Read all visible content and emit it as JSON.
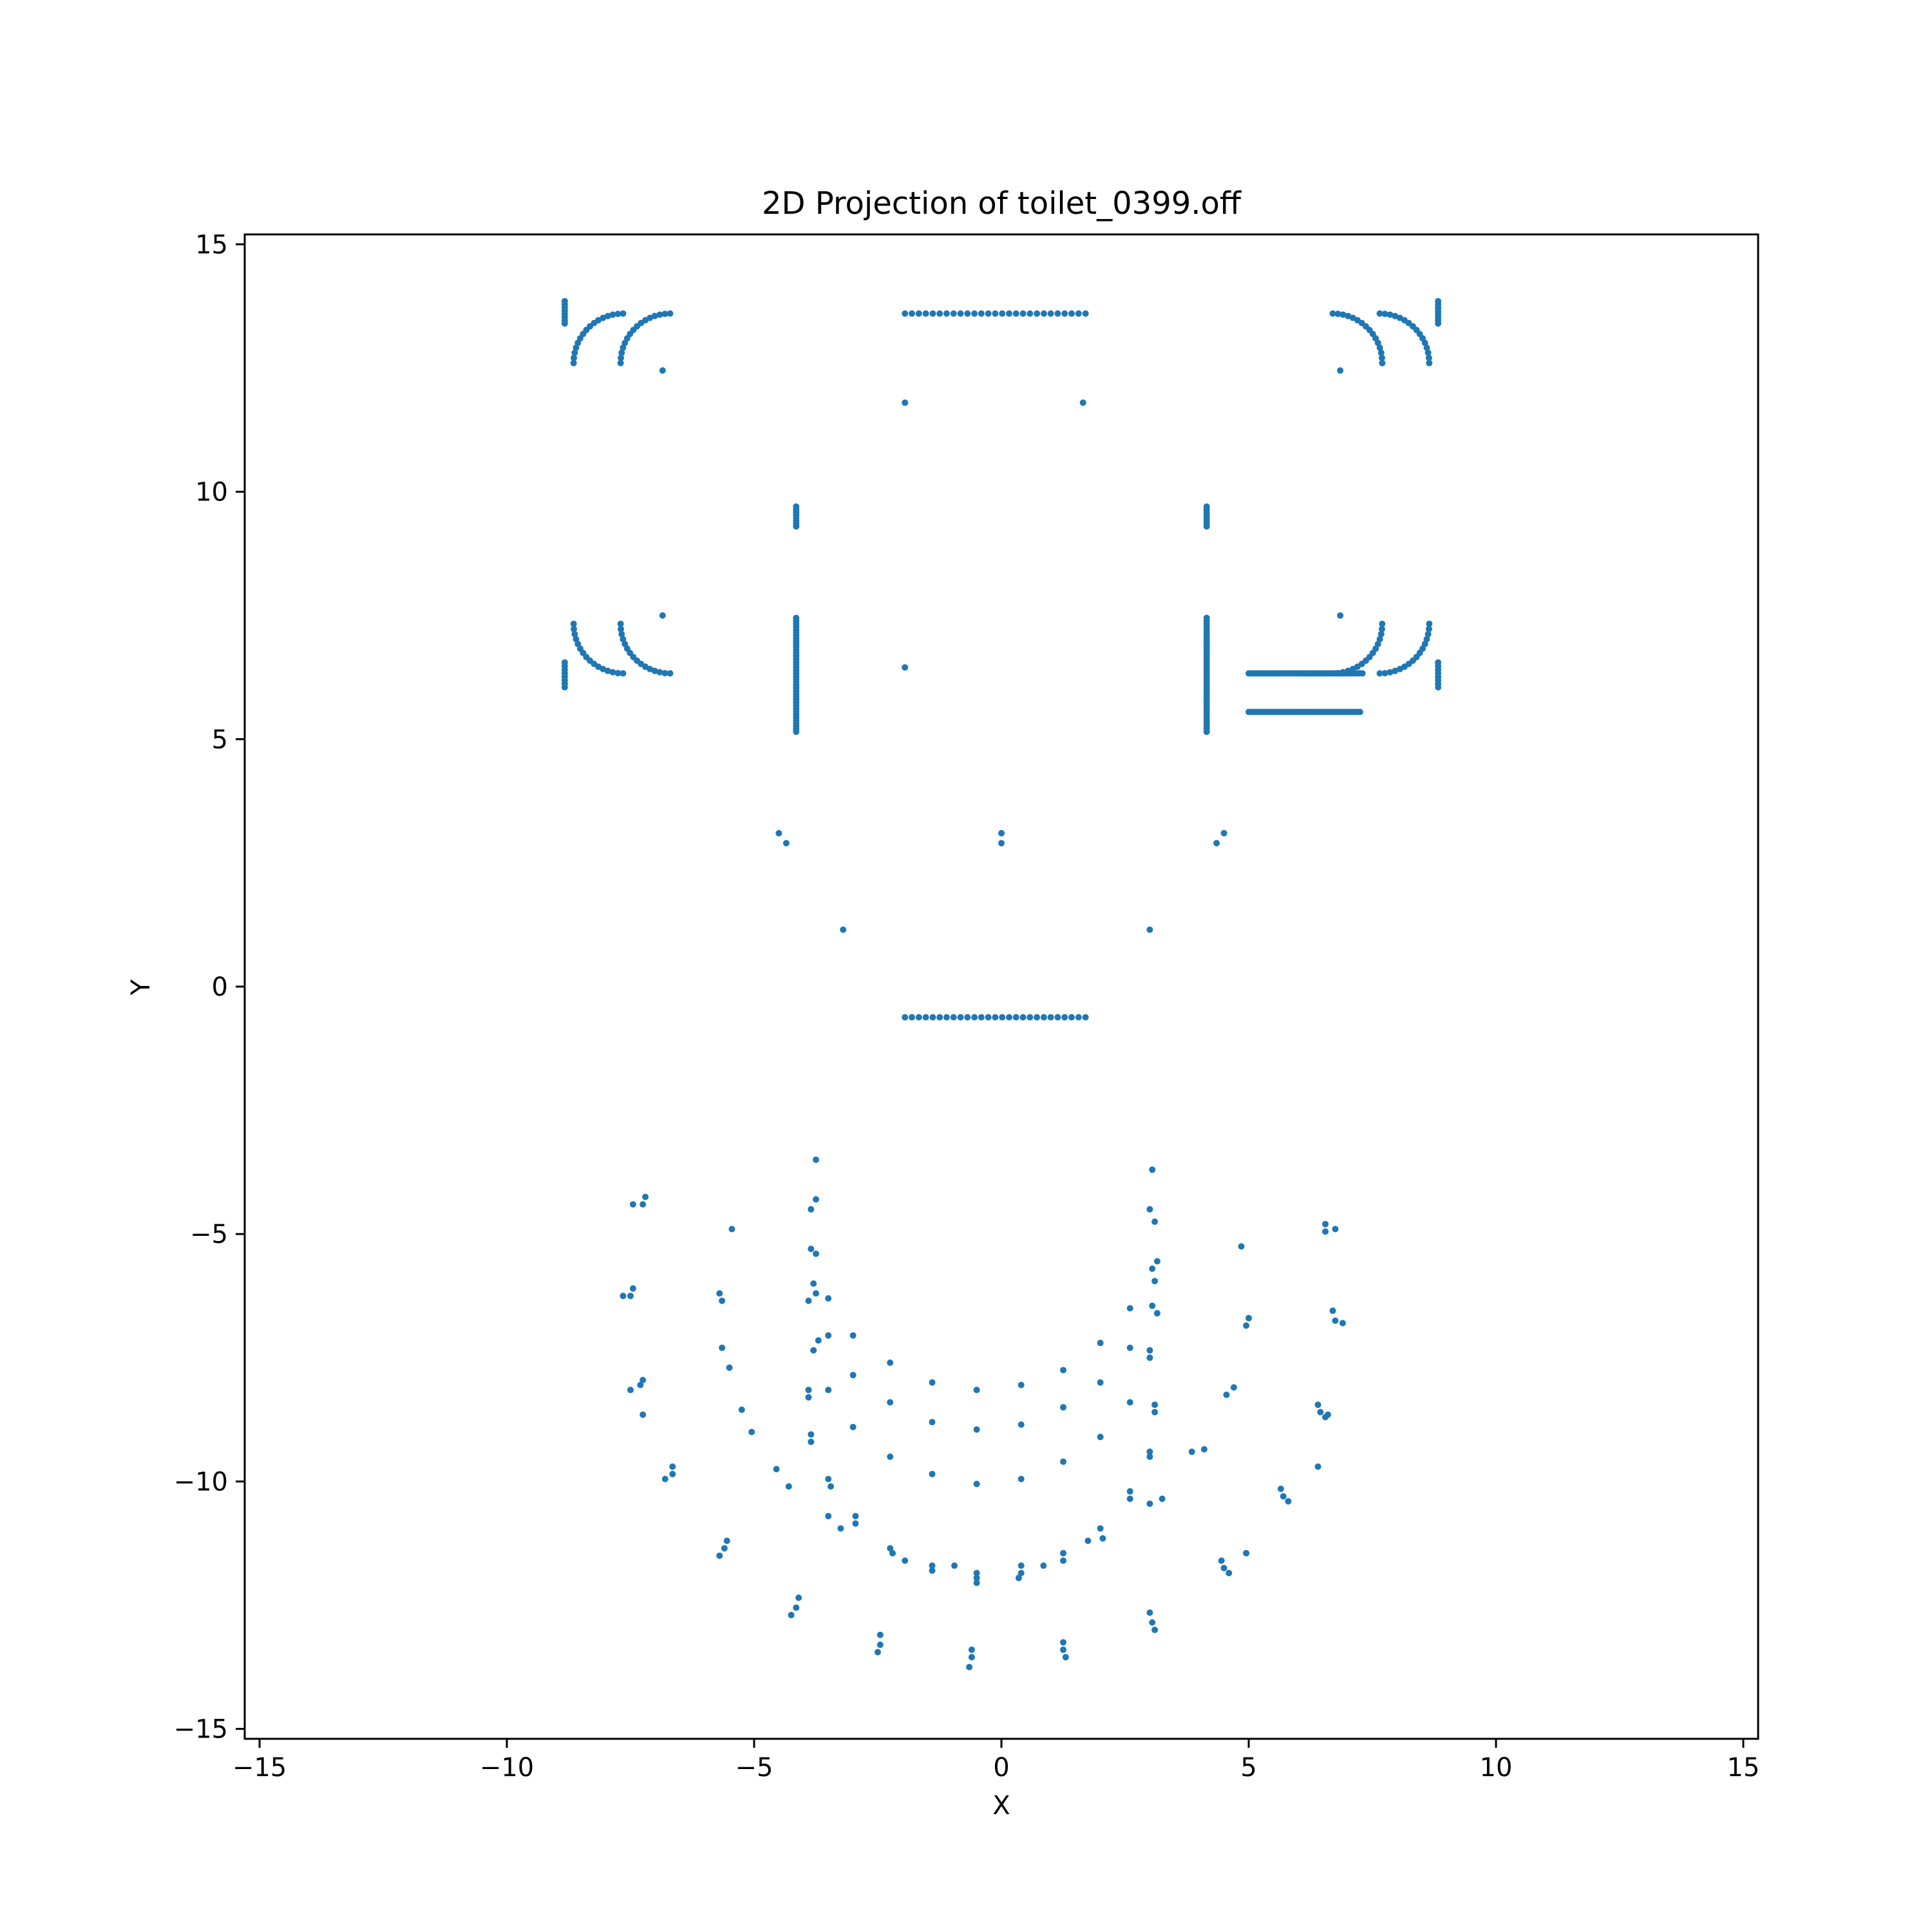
{
  "chart_data": {
    "type": "scatter",
    "title": "2D Projection of toilet_0399.off",
    "xlabel": "X",
    "ylabel": "Y",
    "xlim": [
      -15.3,
      15.3
    ],
    "ylim": [
      -15.2,
      15.2
    ],
    "xticks": [
      -15,
      -10,
      -5,
      0,
      5,
      10,
      15
    ],
    "yticks": [
      -15,
      -10,
      -5,
      0,
      5,
      10,
      15
    ],
    "xtick_labels": [
      "−15",
      "−10",
      "−5",
      "0",
      "5",
      "10",
      "15"
    ],
    "ytick_labels": [
      "−15",
      "−10",
      "−5",
      "0",
      "5",
      "10",
      "15"
    ],
    "grid": false,
    "color": "#1f77b4",
    "series": [
      {
        "segments": [
          {
            "from": [
              -1.95,
              13.6
            ],
            "to": [
              1.7,
              13.6
            ],
            "n": 27
          },
          {
            "from": [
              -1.95,
              -0.62
            ],
            "to": [
              1.7,
              -0.62
            ],
            "n": 27
          },
          {
            "from": [
              -4.15,
              5.15
            ],
            "to": [
              -4.15,
              7.45
            ],
            "n": 40
          },
          {
            "from": [
              4.15,
              5.15
            ],
            "to": [
              4.15,
              7.45
            ],
            "n": 40
          },
          {
            "from": [
              -4.15,
              9.3
            ],
            "to": [
              -4.15,
              9.7
            ],
            "n": 8
          },
          {
            "from": [
              4.15,
              9.3
            ],
            "to": [
              4.15,
              9.7
            ],
            "n": 8
          },
          {
            "from": [
              -8.83,
              13.4
            ],
            "to": [
              -8.83,
              13.85
            ],
            "n": 8
          },
          {
            "from": [
              8.83,
              13.4
            ],
            "to": [
              8.83,
              13.85
            ],
            "n": 8
          },
          {
            "from": [
              -8.83,
              6.05
            ],
            "to": [
              -8.83,
              6.55
            ],
            "n": 8
          },
          {
            "from": [
              8.83,
              6.05
            ],
            "to": [
              8.83,
              6.55
            ],
            "n": 8
          },
          {
            "from": [
              5.0,
              6.33
            ],
            "to": [
              7.3,
              6.33
            ],
            "n": 42
          },
          {
            "from": [
              5.0,
              5.55
            ],
            "to": [
              7.25,
              5.55
            ],
            "n": 40
          }
        ],
        "arcs": [
          {
            "center": [
              -7.65,
              12.6
            ],
            "radius": 1.0,
            "from_deg": 90,
            "to_deg": 180,
            "n": 16
          },
          {
            "center": [
              -6.7,
              12.6
            ],
            "radius": 1.0,
            "from_deg": 90,
            "to_deg": 180,
            "n": 16
          },
          {
            "center": [
              7.65,
              12.6
            ],
            "radius": 1.0,
            "from_deg": 0,
            "to_deg": 90,
            "n": 16
          },
          {
            "center": [
              6.7,
              12.6
            ],
            "radius": 1.0,
            "from_deg": 0,
            "to_deg": 90,
            "n": 16
          },
          {
            "center": [
              -7.65,
              7.33
            ],
            "radius": 1.0,
            "from_deg": 180,
            "to_deg": 270,
            "n": 16
          },
          {
            "center": [
              -6.7,
              7.33
            ],
            "radius": 1.0,
            "from_deg": 180,
            "to_deg": 270,
            "n": 16
          },
          {
            "center": [
              7.65,
              7.33
            ],
            "radius": 1.0,
            "from_deg": 270,
            "to_deg": 360,
            "n": 16
          },
          {
            "center": [
              6.7,
              7.33
            ],
            "radius": 1.0,
            "from_deg": 270,
            "to_deg": 360,
            "n": 16
          }
        ],
        "points": [
          [
            -1.95,
            11.8
          ],
          [
            1.65,
            11.8
          ],
          [
            -6.85,
            12.45
          ],
          [
            6.85,
            12.45
          ],
          [
            -6.85,
            7.5
          ],
          [
            6.85,
            7.5
          ],
          [
            -1.95,
            6.45
          ],
          [
            -4.5,
            3.1
          ],
          [
            -4.35,
            2.9
          ],
          [
            0.0,
            3.1
          ],
          [
            0.0,
            2.9
          ],
          [
            4.35,
            2.9
          ],
          [
            4.5,
            3.1
          ],
          [
            -3.2,
            1.15
          ],
          [
            3.0,
            1.15
          ],
          [
            -3.75,
            -3.5
          ],
          [
            -3.75,
            -4.3
          ],
          [
            -3.85,
            -4.5
          ],
          [
            -3.85,
            -5.3
          ],
          [
            -3.75,
            -5.4
          ],
          [
            -3.8,
            -6.0
          ],
          [
            -3.75,
            -6.2
          ],
          [
            -3.9,
            -6.35
          ],
          [
            -3.5,
            -6.3
          ],
          [
            -3.8,
            -7.35
          ],
          [
            -3.7,
            -7.15
          ],
          [
            -3.5,
            -7.05
          ],
          [
            -3.9,
            -8.15
          ],
          [
            -3.9,
            -8.3
          ],
          [
            -3.5,
            -8.15
          ],
          [
            -3.85,
            -9.05
          ],
          [
            -3.85,
            -9.2
          ],
          [
            -3.5,
            -9.95
          ],
          [
            -3.45,
            -10.1
          ],
          [
            -3.5,
            -10.7
          ],
          [
            -3.25,
            -10.95
          ],
          [
            -2.95,
            -10.85
          ],
          [
            -2.95,
            -10.7
          ],
          [
            -3.0,
            -8.9
          ],
          [
            -3.0,
            -7.85
          ],
          [
            -3.0,
            -7.05
          ],
          [
            -2.25,
            -7.6
          ],
          [
            -2.25,
            -8.4
          ],
          [
            -2.25,
            -9.5
          ],
          [
            -2.25,
            -11.35
          ],
          [
            -2.2,
            -11.45
          ],
          [
            -1.95,
            -11.6
          ],
          [
            -1.4,
            -11.7
          ],
          [
            -1.4,
            -11.8
          ],
          [
            -0.95,
            -11.7
          ],
          [
            -0.5,
            -11.85
          ],
          [
            -0.5,
            -11.95
          ],
          [
            -0.5,
            -12.05
          ],
          [
            0.4,
            -11.7
          ],
          [
            0.4,
            -11.85
          ],
          [
            0.35,
            -11.95
          ],
          [
            0.85,
            -11.7
          ],
          [
            1.75,
            -11.2
          ],
          [
            2.0,
            -10.95
          ],
          [
            2.05,
            -11.15
          ],
          [
            1.25,
            -11.45
          ],
          [
            1.25,
            -11.6
          ],
          [
            1.25,
            -9.6
          ],
          [
            1.25,
            -8.5
          ],
          [
            1.25,
            -7.75
          ],
          [
            0.4,
            -8.05
          ],
          [
            0.4,
            -8.85
          ],
          [
            0.4,
            -9.95
          ],
          [
            -0.5,
            -8.15
          ],
          [
            -0.5,
            -8.95
          ],
          [
            -0.5,
            -10.05
          ],
          [
            -1.4,
            -8.0
          ],
          [
            -1.4,
            -8.8
          ],
          [
            -1.4,
            -9.85
          ],
          [
            2.0,
            -7.2
          ],
          [
            2.0,
            -8.0
          ],
          [
            2.0,
            -9.1
          ],
          [
            2.6,
            -6.5
          ],
          [
            2.6,
            -7.3
          ],
          [
            2.6,
            -8.4
          ],
          [
            2.6,
            -10.2
          ],
          [
            2.6,
            -10.35
          ],
          [
            3.0,
            -10.45
          ],
          [
            3.0,
            -9.4
          ],
          [
            3.0,
            -9.5
          ],
          [
            3.1,
            -8.45
          ],
          [
            3.1,
            -8.6
          ],
          [
            3.0,
            -7.5
          ],
          [
            3.0,
            -7.35
          ],
          [
            3.05,
            -6.45
          ],
          [
            3.15,
            -6.6
          ],
          [
            3.1,
            -5.95
          ],
          [
            3.05,
            -5.7
          ],
          [
            3.15,
            -5.55
          ],
          [
            3.1,
            -4.75
          ],
          [
            3.0,
            -4.5
          ],
          [
            3.05,
            -3.7
          ],
          [
            3.25,
            -10.35
          ],
          [
            3.85,
            -9.4
          ],
          [
            4.1,
            -9.35
          ],
          [
            4.45,
            -11.6
          ],
          [
            4.5,
            -11.75
          ],
          [
            4.6,
            -11.85
          ],
          [
            4.95,
            -11.45
          ],
          [
            4.55,
            -8.25
          ],
          [
            4.7,
            -8.1
          ],
          [
            4.85,
            -5.25
          ],
          [
            4.95,
            -6.85
          ],
          [
            5.0,
            -6.7
          ],
          [
            5.65,
            -10.15
          ],
          [
            5.7,
            -10.3
          ],
          [
            5.8,
            -10.4
          ],
          [
            6.4,
            -8.45
          ],
          [
            6.45,
            -8.6
          ],
          [
            6.55,
            -8.7
          ],
          [
            6.6,
            -8.65
          ],
          [
            6.4,
            -9.7
          ],
          [
            6.55,
            -4.8
          ],
          [
            6.55,
            -4.95
          ],
          [
            6.75,
            -4.9
          ],
          [
            6.7,
            -6.55
          ],
          [
            6.75,
            -6.75
          ],
          [
            6.9,
            -6.8
          ],
          [
            -7.45,
            -4.4
          ],
          [
            -7.2,
            -4.25
          ],
          [
            -7.25,
            -4.4
          ],
          [
            -7.65,
            -6.25
          ],
          [
            -7.45,
            -6.1
          ],
          [
            -7.5,
            -6.25
          ],
          [
            -7.5,
            -8.15
          ],
          [
            -7.3,
            -8.05
          ],
          [
            -7.25,
            -7.95
          ],
          [
            -7.25,
            -8.65
          ],
          [
            -6.8,
            -9.95
          ],
          [
            -6.65,
            -9.7
          ],
          [
            -6.65,
            -9.85
          ],
          [
            -5.45,
            -4.9
          ],
          [
            -5.7,
            -6.2
          ],
          [
            -5.65,
            -6.35
          ],
          [
            -5.65,
            -7.3
          ],
          [
            -5.5,
            -7.7
          ],
          [
            -5.25,
            -8.55
          ],
          [
            -5.05,
            -9.0
          ],
          [
            -4.55,
            -9.75
          ],
          [
            -4.3,
            -10.1
          ],
          [
            -5.7,
            -11.5
          ],
          [
            -5.6,
            -11.35
          ],
          [
            -5.55,
            -11.2
          ],
          [
            -4.1,
            -12.35
          ],
          [
            -4.15,
            -12.55
          ],
          [
            -4.25,
            -12.7
          ],
          [
            -2.5,
            -13.45
          ],
          [
            -2.45,
            -13.3
          ],
          [
            -2.45,
            -13.1
          ],
          [
            -0.65,
            -13.75
          ],
          [
            -0.6,
            -13.55
          ],
          [
            -0.6,
            -13.4
          ],
          [
            1.25,
            -13.25
          ],
          [
            1.25,
            -13.4
          ],
          [
            1.3,
            -13.55
          ],
          [
            3.0,
            -12.65
          ],
          [
            3.05,
            -12.85
          ],
          [
            3.1,
            -13.0
          ]
        ]
      }
    ]
  }
}
